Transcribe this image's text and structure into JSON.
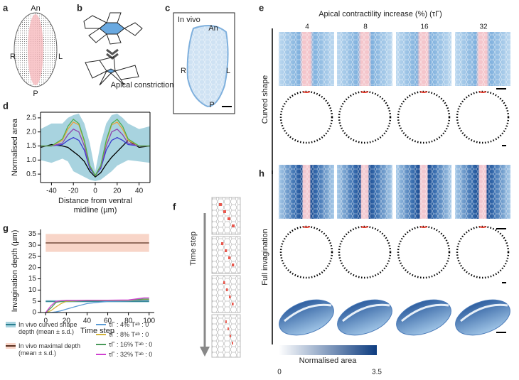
{
  "panel_labels": [
    "a",
    "b",
    "c",
    "d",
    "e",
    "f",
    "g",
    "h"
  ],
  "panel_a": {
    "top": "An",
    "left": "R",
    "right": "L",
    "bottom": "P"
  },
  "panel_b": {
    "caption": "Apical constriction"
  },
  "panel_c": {
    "title": "In vivo",
    "top": "An",
    "left": "R",
    "right": "L",
    "bottom": "P"
  },
  "panel_e": {
    "title": "Apical contractility increase (%) (τΓ)",
    "columns": [
      "4",
      "8",
      "16",
      "32"
    ],
    "row_label": "Curved shape"
  },
  "panel_f": {
    "axis_label": "Time step"
  },
  "panel_h": {
    "row_label": "Full invagination",
    "colorbar": {
      "label": "Normalised area",
      "ticks": [
        0,
        3.5
      ]
    }
  },
  "chart_data": [
    {
      "type": "line",
      "ylabel": "Normalised area",
      "xlabel": [
        "Distance from ventral",
        "midline (µm)"
      ],
      "frame": true,
      "x": [
        -50,
        -40,
        -30,
        -25,
        -20,
        -15,
        -10,
        -5,
        0,
        5,
        10,
        15,
        20,
        25,
        30,
        40,
        50
      ],
      "xlim": [
        -50,
        50
      ],
      "xticks": [
        -40,
        -20,
        0,
        20,
        40
      ],
      "ylim": [
        0.2,
        2.7
      ],
      "yticks": [
        0.5,
        {
          "value": 1,
          "label": "1.0"
        },
        1.5,
        {
          "value": 2,
          "label": "2.0"
        },
        2.5
      ],
      "bands": [
        {
          "color": "#a8d3df",
          "lower": [
            1.0,
            0.9,
            1.05,
            0.95,
            0.6,
            0.5,
            0.4,
            0.3,
            0.25,
            0.3,
            0.45,
            0.6,
            0.8,
            0.9,
            1.0,
            0.95,
            0.9
          ],
          "upper": [
            2.1,
            2.3,
            2.3,
            2.5,
            2.6,
            2.65,
            2.3,
            1.6,
            0.6,
            1.6,
            2.3,
            2.6,
            2.65,
            2.5,
            2.3,
            2.1,
            2.2
          ]
        }
      ],
      "series": [
        {
          "color": "#000000",
          "values": [
            1.45,
            1.55,
            1.5,
            1.45,
            1.3,
            1.15,
            0.95,
            0.6,
            0.4,
            0.55,
            0.85,
            1.1,
            1.3,
            1.5,
            1.7,
            1.45,
            1.5
          ]
        },
        {
          "color": "#3a3acd",
          "values": [
            1.5,
            1.5,
            1.55,
            1.7,
            1.8,
            1.7,
            1.35,
            0.7,
            0.45,
            0.7,
            1.35,
            1.7,
            1.8,
            1.7,
            1.55,
            1.5,
            1.5
          ]
        },
        {
          "color": "#8e44ad",
          "values": [
            1.5,
            1.5,
            1.6,
            1.9,
            2.1,
            2.0,
            1.5,
            0.75,
            0.45,
            0.75,
            1.5,
            2.0,
            2.1,
            1.9,
            1.6,
            1.5,
            1.5
          ]
        },
        {
          "color": "#e8a33a",
          "values": [
            1.5,
            1.5,
            1.7,
            2.1,
            2.35,
            2.25,
            1.65,
            0.8,
            0.45,
            0.8,
            1.65,
            2.25,
            2.35,
            2.1,
            1.7,
            1.5,
            1.5
          ]
        },
        {
          "color": "#4caf50",
          "values": [
            1.5,
            1.5,
            1.75,
            2.2,
            2.45,
            2.3,
            1.7,
            0.8,
            0.45,
            0.8,
            1.7,
            2.3,
            2.45,
            2.2,
            1.75,
            1.5,
            1.5
          ]
        }
      ]
    },
    {
      "type": "line",
      "ylabel": "Invagination depth (µm)",
      "xlabel": [
        "Time step"
      ],
      "frame": false,
      "legend": "bottom",
      "x": [
        0,
        5,
        10,
        15,
        20,
        30,
        40,
        60,
        80,
        95,
        100
      ],
      "xlim": [
        -5,
        105
      ],
      "xticks": [
        0,
        20,
        40,
        60,
        80,
        100
      ],
      "ylim": [
        0,
        37
      ],
      "yticks": [
        0,
        5,
        10,
        15,
        20,
        25,
        30,
        35
      ],
      "series": [
        {
          "name": "In vivo curved shape depth (mean ± s.d.)",
          "color": "#2a7f8f",
          "band": {
            "color": "#a8d3df",
            "lower": [
              4.5,
              4.5,
              4.5,
              4.5,
              4.5,
              4.5,
              4.5,
              4.5,
              4.5,
              4.5,
              4.5
            ],
            "upper": [
              5.5,
              5.5,
              5.5,
              5.5,
              5.5,
              5.5,
              5.5,
              5.5,
              5.5,
              5.5,
              5.5
            ]
          },
          "values": [
            5,
            5,
            5,
            5,
            5,
            5,
            5,
            5,
            5,
            5,
            5
          ]
        },
        {
          "name": "In vivo maximal depth (mean ± s.d.)",
          "color": "#5a3020",
          "band": {
            "color": "#f8d5c8",
            "lower": [
              27,
              27,
              27,
              27,
              27,
              27,
              27,
              27,
              27,
              27,
              27
            ],
            "upper": [
              35,
              35,
              35,
              35,
              35,
              35,
              35,
              35,
              35,
              35,
              35
            ]
          },
          "values": [
            31,
            31,
            31,
            31,
            31,
            31,
            31,
            31,
            31,
            31,
            31
          ]
        },
        {
          "name": "τΓ : 4% Tᵃᵇ : 0",
          "color": "#5b9bd5",
          "values": [
            0,
            0,
            0.3,
            0.8,
            1.5,
            2.8,
            4,
            5,
            5.2,
            5.5,
            5.5
          ]
        },
        {
          "name": "τΓ : 8% Tᵃᵇ : 0",
          "color": "#d4b43a",
          "values": [
            0,
            0.8,
            2.5,
            4,
            5,
            5.2,
            5.3,
            5.3,
            5.4,
            5.8,
            5.8
          ]
        },
        {
          "name": "τΓ : 16% Tᵃᵇ : 0",
          "color": "#4a9a5a",
          "values": [
            0,
            2,
            4.5,
            5,
            5.2,
            5.3,
            5.3,
            5.4,
            5.5,
            6,
            6
          ]
        },
        {
          "name": "τΓ : 32% Tᵃᵇ : 0",
          "color": "#d040d0",
          "values": [
            0,
            3,
            5,
            5.3,
            5.4,
            5.4,
            5.5,
            5.5,
            5.6,
            6.5,
            6.5
          ]
        }
      ]
    }
  ]
}
